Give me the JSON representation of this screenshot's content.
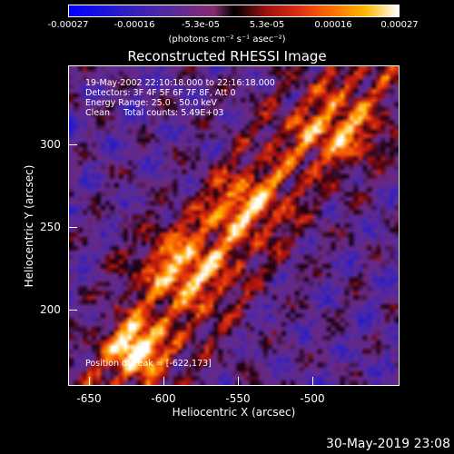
{
  "colorbar": {
    "ticks": [
      "-0.00027",
      "-0.00016",
      "-5.3e-05",
      "5.3e-05",
      "0.00016",
      "0.00027"
    ],
    "units": "(photons cm⁻² s⁻¹ asec⁻²)"
  },
  "title": "Reconstructed RHESSI Image",
  "annotation": {
    "line1": "19-May-2002 22:10:18.000 to 22:16:18.000",
    "line2": "Detectors: 3F 4F 5F 6F 7F 8F, Att 0",
    "line3": "Energy Range: 25.0 - 50.0 keV",
    "line4": "Clean     Total counts: 5.49E+03",
    "peak": "Position of Peak = [-622,173]"
  },
  "xaxis": {
    "label": "Heliocentric X (arcsec)",
    "ticks": [
      "-650",
      "-600",
      "-550",
      "-500"
    ]
  },
  "yaxis": {
    "label": "Heliocentric Y (arcsec)",
    "ticks": [
      "200",
      "250",
      "300"
    ]
  },
  "timestamp": "30-May-2019 23:08"
}
